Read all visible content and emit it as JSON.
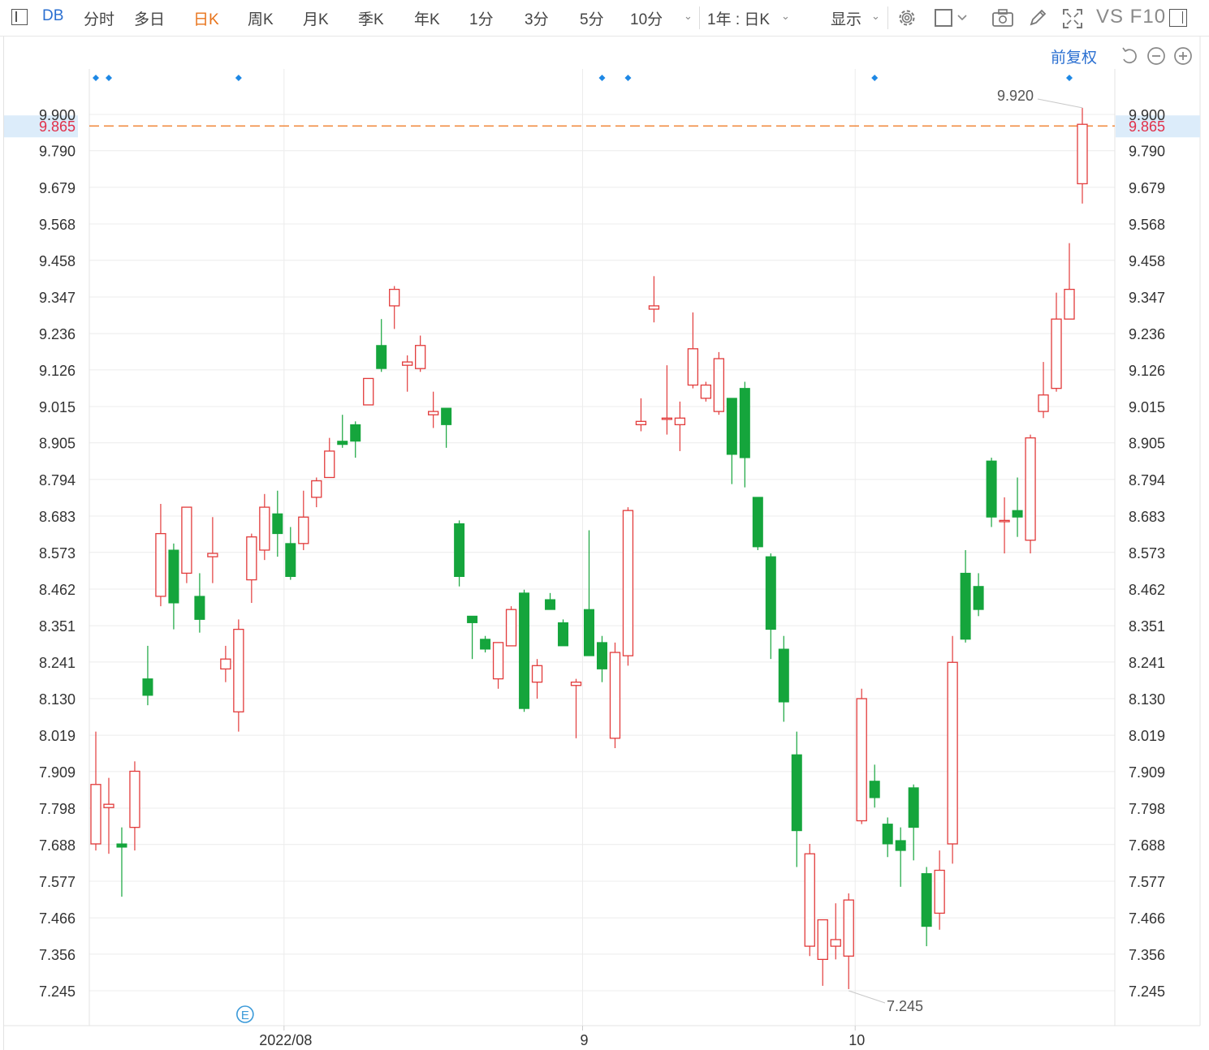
{
  "toolbar": {
    "code": "DB",
    "periods": [
      "分时",
      "多日",
      "日K",
      "周K",
      "月K",
      "季K",
      "年K",
      "1分",
      "3分",
      "5分",
      "10分"
    ],
    "active_period": "日K",
    "range_select": "1年 : 日K",
    "display_label": "显示",
    "vs_f10": "VS F10"
  },
  "rights_label": "前复权",
  "colors": {
    "up": "#e23b3b",
    "down": "#15a53c",
    "current_price_line": "#f0883c",
    "current_price_text": "#e0304a",
    "grid": "#ececec",
    "marker": "#1e88e5",
    "accent": "#2a6fd1"
  },
  "chart_data": {
    "type": "candlestick",
    "y_ticks": [
      "9.900",
      "9.790",
      "9.679",
      "9.568",
      "9.458",
      "9.347",
      "9.236",
      "9.126",
      "9.015",
      "8.905",
      "8.794",
      "8.683",
      "8.573",
      "8.462",
      "8.351",
      "8.241",
      "8.130",
      "8.019",
      "7.909",
      "7.798",
      "7.688",
      "7.577",
      "7.466",
      "7.356",
      "7.245"
    ],
    "ylim": [
      7.2,
      9.97
    ],
    "x_tick_labels": [
      {
        "label": "2022/08",
        "index": 14.5
      },
      {
        "label": "9",
        "index": 37.5
      },
      {
        "label": "10",
        "index": 58.5
      }
    ],
    "current_price": 9.865,
    "high_label": "9.920",
    "low_label": "7.245",
    "high_value": 9.92,
    "low_value": 7.245,
    "event_marker": "E",
    "event_marker_index": 11.5,
    "top_markers_index": [
      0,
      1,
      11,
      39,
      41,
      60,
      75
    ],
    "candles": [
      {
        "o": 7.69,
        "h": 8.03,
        "l": 7.67,
        "c": 7.87
      },
      {
        "o": 7.8,
        "h": 7.89,
        "l": 7.66,
        "c": 7.81
      },
      {
        "o": 7.69,
        "h": 7.74,
        "l": 7.53,
        "c": 7.68
      },
      {
        "o": 7.74,
        "h": 7.94,
        "l": 7.67,
        "c": 7.91
      },
      {
        "o": 8.19,
        "h": 8.29,
        "l": 8.11,
        "c": 8.14
      },
      {
        "o": 8.44,
        "h": 8.72,
        "l": 8.41,
        "c": 8.63
      },
      {
        "o": 8.58,
        "h": 8.6,
        "l": 8.34,
        "c": 8.42
      },
      {
        "o": 8.51,
        "h": 8.71,
        "l": 8.48,
        "c": 8.71
      },
      {
        "o": 8.44,
        "h": 8.51,
        "l": 8.33,
        "c": 8.37
      },
      {
        "o": 8.56,
        "h": 8.68,
        "l": 8.48,
        "c": 8.57
      },
      {
        "o": 8.22,
        "h": 8.29,
        "l": 8.18,
        "c": 8.25
      },
      {
        "o": 8.09,
        "h": 8.37,
        "l": 8.03,
        "c": 8.34
      },
      {
        "o": 8.49,
        "h": 8.63,
        "l": 8.42,
        "c": 8.62
      },
      {
        "o": 8.58,
        "h": 8.75,
        "l": 8.55,
        "c": 8.71
      },
      {
        "o": 8.69,
        "h": 8.76,
        "l": 8.56,
        "c": 8.63
      },
      {
        "o": 8.6,
        "h": 8.65,
        "l": 8.49,
        "c": 8.5
      },
      {
        "o": 8.6,
        "h": 8.76,
        "l": 8.58,
        "c": 8.68
      },
      {
        "o": 8.74,
        "h": 8.8,
        "l": 8.71,
        "c": 8.79
      },
      {
        "o": 8.8,
        "h": 8.92,
        "l": 8.8,
        "c": 8.88
      },
      {
        "o": 8.91,
        "h": 8.99,
        "l": 8.89,
        "c": 8.9
      },
      {
        "o": 8.96,
        "h": 8.97,
        "l": 8.86,
        "c": 8.91
      },
      {
        "o": 9.02,
        "h": 9.1,
        "l": 9.02,
        "c": 9.1
      },
      {
        "o": 9.2,
        "h": 9.28,
        "l": 9.12,
        "c": 9.13
      },
      {
        "o": 9.32,
        "h": 9.38,
        "l": 9.25,
        "c": 9.37
      },
      {
        "o": 9.14,
        "h": 9.17,
        "l": 9.06,
        "c": 9.15
      },
      {
        "o": 9.13,
        "h": 9.23,
        "l": 9.12,
        "c": 9.2
      },
      {
        "o": 8.99,
        "h": 9.06,
        "l": 8.95,
        "c": 9.0
      },
      {
        "o": 9.01,
        "h": 9.01,
        "l": 8.89,
        "c": 8.96
      },
      {
        "o": 8.66,
        "h": 8.67,
        "l": 8.47,
        "c": 8.5
      },
      {
        "o": 8.38,
        "h": 8.38,
        "l": 8.25,
        "c": 8.36
      },
      {
        "o": 8.31,
        "h": 8.32,
        "l": 8.27,
        "c": 8.28
      },
      {
        "o": 8.19,
        "h": 8.3,
        "l": 8.16,
        "c": 8.3
      },
      {
        "o": 8.29,
        "h": 8.41,
        "l": 8.29,
        "c": 8.4
      },
      {
        "o": 8.45,
        "h": 8.46,
        "l": 8.09,
        "c": 8.1
      },
      {
        "o": 8.18,
        "h": 8.25,
        "l": 8.13,
        "c": 8.23
      },
      {
        "o": 8.43,
        "h": 8.45,
        "l": 8.4,
        "c": 8.4
      },
      {
        "o": 8.36,
        "h": 8.37,
        "l": 8.29,
        "c": 8.29
      },
      {
        "o": 8.17,
        "h": 8.19,
        "l": 8.01,
        "c": 8.18
      },
      {
        "o": 8.4,
        "h": 8.64,
        "l": 8.26,
        "c": 8.26
      },
      {
        "o": 8.3,
        "h": 8.32,
        "l": 8.18,
        "c": 8.22
      },
      {
        "o": 8.01,
        "h": 8.3,
        "l": 7.98,
        "c": 8.27
      },
      {
        "o": 8.26,
        "h": 8.71,
        "l": 8.23,
        "c": 8.7
      },
      {
        "o": 8.96,
        "h": 9.04,
        "l": 8.94,
        "c": 8.97
      },
      {
        "o": 9.31,
        "h": 9.41,
        "l": 9.27,
        "c": 9.32
      },
      {
        "o": 8.98,
        "h": 9.14,
        "l": 8.93,
        "c": 8.98
      },
      {
        "o": 8.96,
        "h": 9.03,
        "l": 8.88,
        "c": 8.98
      },
      {
        "o": 9.08,
        "h": 9.3,
        "l": 9.07,
        "c": 9.19
      },
      {
        "o": 9.04,
        "h": 9.09,
        "l": 9.03,
        "c": 9.08
      },
      {
        "o": 9.0,
        "h": 9.18,
        "l": 8.99,
        "c": 9.16
      },
      {
        "o": 9.04,
        "h": 9.04,
        "l": 8.78,
        "c": 8.87
      },
      {
        "o": 9.07,
        "h": 9.09,
        "l": 8.77,
        "c": 8.86
      },
      {
        "o": 8.74,
        "h": 8.74,
        "l": 8.58,
        "c": 8.59
      },
      {
        "o": 8.56,
        "h": 8.57,
        "l": 8.25,
        "c": 8.34
      },
      {
        "o": 8.28,
        "h": 8.32,
        "l": 8.06,
        "c": 8.12
      },
      {
        "o": 7.96,
        "h": 8.03,
        "l": 7.62,
        "c": 7.73
      },
      {
        "o": 7.38,
        "h": 7.69,
        "l": 7.35,
        "c": 7.66
      },
      {
        "o": 7.34,
        "h": 7.44,
        "l": 7.26,
        "c": 7.46
      },
      {
        "o": 7.38,
        "h": 7.51,
        "l": 7.34,
        "c": 7.4
      },
      {
        "o": 7.35,
        "h": 7.54,
        "l": 7.25,
        "c": 7.52
      },
      {
        "o": 7.76,
        "h": 8.16,
        "l": 7.75,
        "c": 8.13
      },
      {
        "o": 7.88,
        "h": 7.93,
        "l": 7.8,
        "c": 7.83
      },
      {
        "o": 7.75,
        "h": 7.77,
        "l": 7.65,
        "c": 7.69
      },
      {
        "o": 7.7,
        "h": 7.74,
        "l": 7.56,
        "c": 7.67
      },
      {
        "o": 7.86,
        "h": 7.87,
        "l": 7.64,
        "c": 7.74
      },
      {
        "o": 7.6,
        "h": 7.62,
        "l": 7.38,
        "c": 7.44
      },
      {
        "o": 7.48,
        "h": 7.67,
        "l": 7.43,
        "c": 7.61
      },
      {
        "o": 7.69,
        "h": 8.32,
        "l": 7.63,
        "c": 8.24
      },
      {
        "o": 8.51,
        "h": 8.58,
        "l": 8.3,
        "c": 8.31
      },
      {
        "o": 8.47,
        "h": 8.51,
        "l": 8.38,
        "c": 8.4
      },
      {
        "o": 8.85,
        "h": 8.86,
        "l": 8.65,
        "c": 8.68
      },
      {
        "o": 8.67,
        "h": 8.74,
        "l": 8.57,
        "c": 8.67
      },
      {
        "o": 8.7,
        "h": 8.8,
        "l": 8.62,
        "c": 8.68
      },
      {
        "o": 8.61,
        "h": 8.93,
        "l": 8.57,
        "c": 8.92
      },
      {
        "o": 9.0,
        "h": 9.15,
        "l": 8.98,
        "c": 9.05
      },
      {
        "o": 9.07,
        "h": 9.36,
        "l": 9.06,
        "c": 9.28
      },
      {
        "o": 9.28,
        "h": 9.51,
        "l": 9.28,
        "c": 9.37
      },
      {
        "o": 9.69,
        "h": 9.92,
        "l": 9.63,
        "c": 9.87
      }
    ]
  }
}
